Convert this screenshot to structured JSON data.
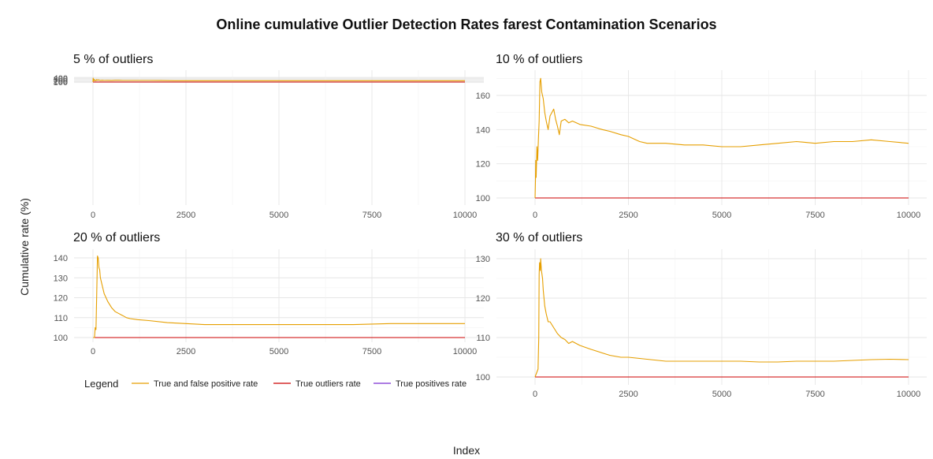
{
  "figure": {
    "title": "Online cumulative Outlier Detection Rates farest Contamination Scenarios",
    "xlabel": "Index",
    "ylabel": "Cumulative rate (%)"
  },
  "legend": {
    "title": "Legend",
    "position": "bottom-left",
    "entries": [
      {
        "label": "True and false positive rate",
        "color": "#E69F00"
      },
      {
        "label": "True outliers rate",
        "color": "#CC0000"
      },
      {
        "label": "True positives rate",
        "color": "#7B2FD0"
      }
    ]
  },
  "chart_data": [
    {
      "type": "line",
      "title": "5 % of outliers",
      "xlim": [
        0,
        10000
      ],
      "ylim": [
        100,
        400
      ],
      "x_ticks": [
        0,
        2500,
        5000,
        7500,
        10000
      ],
      "y_ticks": [
        100,
        200,
        300,
        400
      ],
      "grid": true,
      "series": [
        {
          "name": "True and false positive rate",
          "color": "#E69F00",
          "x": [
            0,
            5,
            10,
            20,
            30,
            45,
            60,
            80,
            100,
            120,
            150,
            180,
            200,
            250,
            300,
            400,
            500,
            600,
            700,
            800,
            900,
            1000,
            1200,
            1500,
            1800,
            2000,
            2200,
            2500,
            2800,
            3000,
            3500,
            4000,
            4500,
            5000,
            5500,
            6000,
            6500,
            7000,
            7500,
            8000,
            8500,
            9000,
            9500,
            10000
          ],
          "y": [
            100,
            400,
            300,
            200,
            300,
            210,
            250,
            200,
            280,
            240,
            260,
            225,
            215,
            230,
            220,
            225,
            215,
            230,
            235,
            222,
            218,
            222,
            220,
            218,
            215,
            210,
            204,
            200,
            199,
            201,
            200,
            201,
            200,
            200,
            200,
            203,
            204,
            203,
            204,
            203,
            204,
            205,
            203,
            200
          ]
        },
        {
          "name": "True outliers rate",
          "color": "#CC0000",
          "x": [
            0,
            10000
          ],
          "y": [
            100,
            100
          ]
        },
        {
          "name": "True positives rate",
          "color": "#7B2FD0",
          "x": [
            0,
            10000
          ],
          "y": [
            100,
            100
          ]
        }
      ]
    },
    {
      "type": "line",
      "title": "10 % of outliers",
      "xlim": [
        0,
        10000
      ],
      "ylim": [
        100,
        170
      ],
      "x_ticks": [
        0,
        2500,
        5000,
        7500,
        10000
      ],
      "y_ticks": [
        100,
        120,
        140,
        160
      ],
      "grid": true,
      "series": [
        {
          "name": "True and false positive rate",
          "color": "#E69F00",
          "x": [
            0,
            10,
            20,
            30,
            50,
            70,
            90,
            110,
            130,
            150,
            180,
            220,
            260,
            300,
            350,
            400,
            450,
            500,
            550,
            600,
            650,
            700,
            800,
            900,
            1000,
            1200,
            1500,
            1800,
            2000,
            2300,
            2500,
            2800,
            3000,
            3500,
            4000,
            4500,
            5000,
            5500,
            6000,
            6500,
            7000,
            7500,
            8000,
            8500,
            9000,
            9500,
            10000
          ],
          "y": [
            100,
            110,
            122,
            112,
            130,
            122,
            135,
            145,
            168,
            170,
            162,
            158,
            150,
            145,
            140,
            148,
            150,
            152,
            146,
            142,
            137,
            145,
            146,
            144,
            145,
            143,
            142,
            140,
            139,
            137,
            136,
            133,
            132,
            132,
            131,
            131,
            130,
            130,
            131,
            132,
            133,
            132,
            133,
            133,
            134,
            133,
            132
          ]
        },
        {
          "name": "True outliers rate",
          "color": "#CC0000",
          "x": [
            0,
            10000
          ],
          "y": [
            100,
            100
          ]
        },
        {
          "name": "True positives rate",
          "color": "#7B2FD0",
          "x": [
            0,
            10000
          ],
          "y": [
            100,
            100
          ]
        }
      ]
    },
    {
      "type": "line",
      "title": "20 % of outliers",
      "xlim": [
        0,
        10000
      ],
      "ylim": [
        100,
        142
      ],
      "x_ticks": [
        0,
        2500,
        5000,
        7500,
        10000
      ],
      "y_ticks": [
        100,
        110,
        120,
        130,
        140
      ],
      "grid": true,
      "series": [
        {
          "name": "True and false positive rate",
          "color": "#E69F00",
          "x": [
            0,
            40,
            60,
            80,
            100,
            120,
            140,
            160,
            180,
            200,
            250,
            300,
            400,
            500,
            600,
            700,
            800,
            900,
            1000,
            1200,
            1500,
            2000,
            2500,
            3000,
            3500,
            4000,
            5000,
            6000,
            7000,
            8000,
            9000,
            10000
          ],
          "y": [
            100,
            100,
            105,
            104,
            121,
            141,
            140,
            135,
            134,
            130,
            126,
            122,
            118,
            115,
            113,
            112,
            111,
            110,
            109.5,
            109,
            108.5,
            107.5,
            107,
            106.5,
            106.5,
            106.5,
            106.5,
            106.5,
            106.5,
            107,
            107,
            107
          ]
        },
        {
          "name": "True outliers rate",
          "color": "#CC0000",
          "x": [
            0,
            10000
          ],
          "y": [
            100,
            100
          ]
        },
        {
          "name": "True positives rate",
          "color": "#7B2FD0",
          "x": [
            0,
            10000
          ],
          "y": [
            100,
            100
          ]
        }
      ]
    },
    {
      "type": "line",
      "title": "30 % of outliers",
      "xlim": [
        0,
        10000
      ],
      "ylim": [
        100,
        131
      ],
      "x_ticks": [
        0,
        2500,
        5000,
        7500,
        10000
      ],
      "y_ticks": [
        100,
        110,
        120,
        130
      ],
      "grid": true,
      "series": [
        {
          "name": "True and false positive rate",
          "color": "#E69F00",
          "x": [
            0,
            80,
            100,
            110,
            120,
            140,
            150,
            170,
            200,
            220,
            260,
            300,
            350,
            400,
            500,
            600,
            700,
            800,
            900,
            1000,
            1100,
            1200,
            1500,
            2000,
            2300,
            2500,
            3000,
            3500,
            4000,
            4500,
            5000,
            5500,
            6000,
            6500,
            7000,
            7500,
            8000,
            8500,
            9000,
            9500,
            10000
          ],
          "y": [
            100,
            102,
            110,
            126,
            129,
            127,
            130,
            127,
            125,
            122,
            118,
            116,
            114,
            114,
            112.5,
            111,
            110,
            109.5,
            108.5,
            109,
            108.5,
            108,
            107,
            105.5,
            105,
            105,
            104.5,
            104,
            104,
            104,
            104,
            104,
            103.8,
            103.8,
            104,
            104,
            104,
            104.2,
            104.4,
            104.5,
            104.4
          ]
        },
        {
          "name": "True outliers rate",
          "color": "#CC0000",
          "x": [
            0,
            10000
          ],
          "y": [
            100,
            100
          ]
        },
        {
          "name": "True positives rate",
          "color": "#7B2FD0",
          "x": [
            0,
            10000
          ],
          "y": [
            100,
            100
          ]
        }
      ]
    }
  ]
}
